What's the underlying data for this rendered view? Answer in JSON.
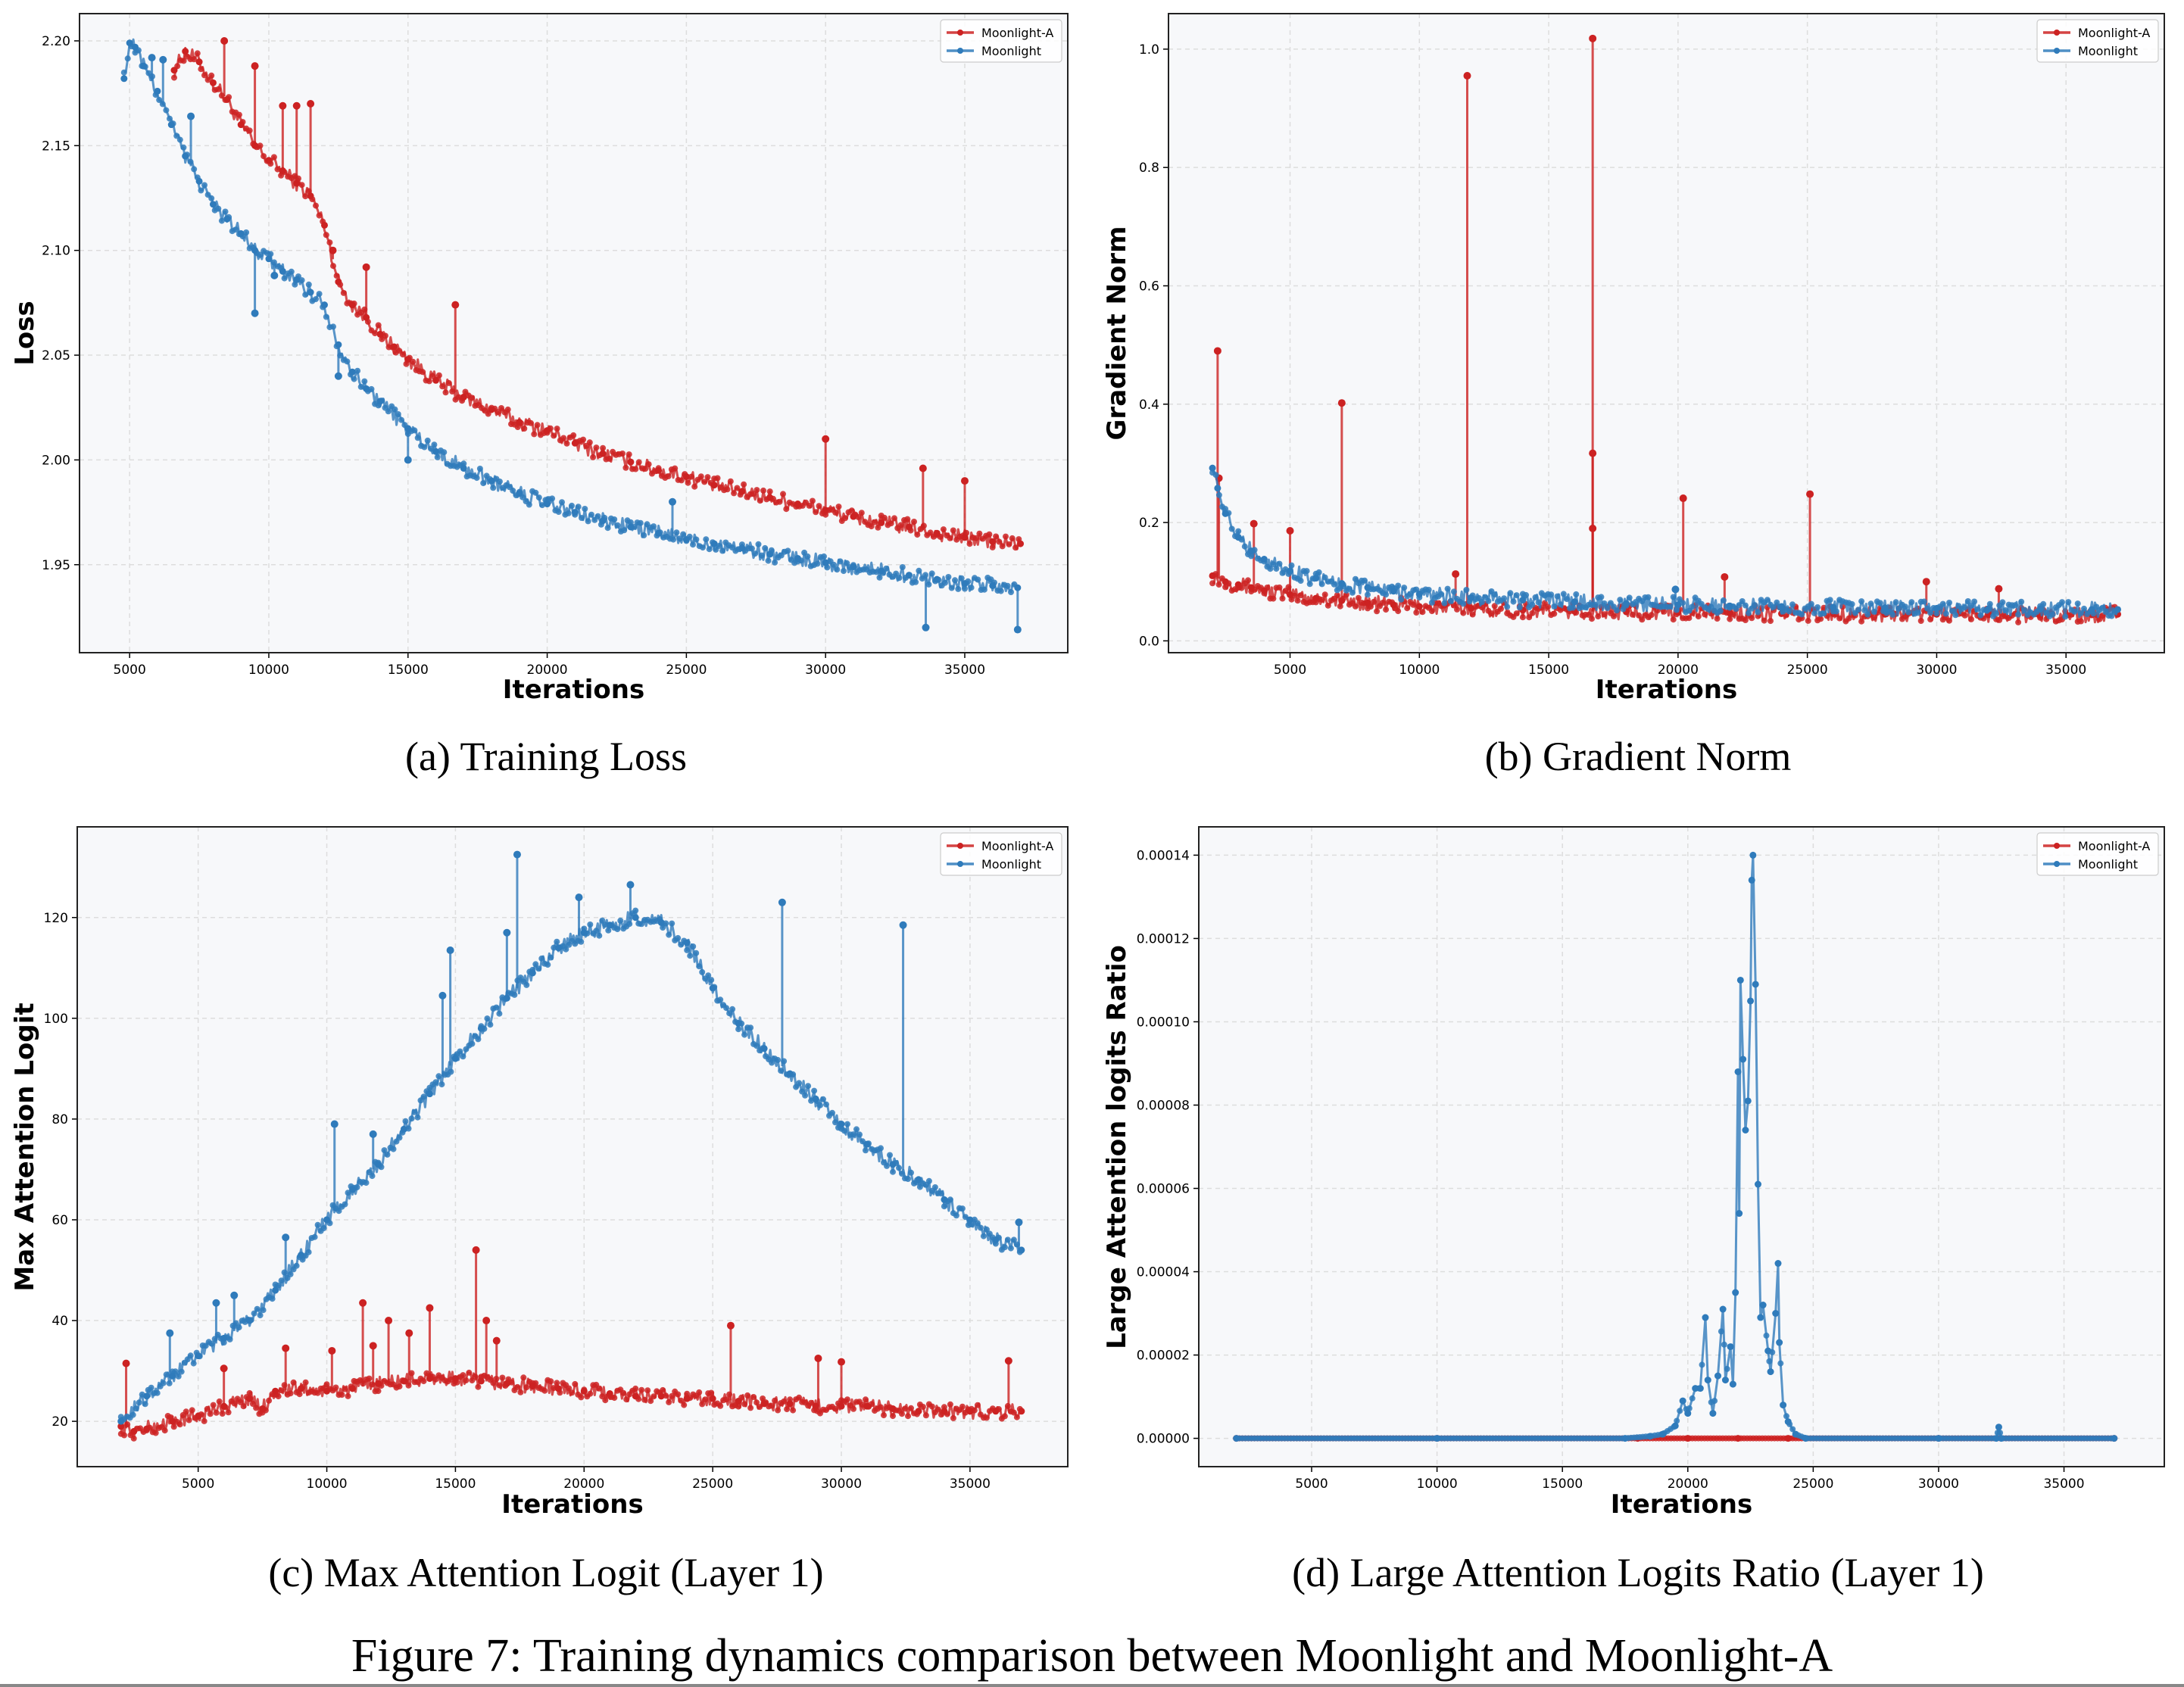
{
  "figure_caption": "Figure 7: Training dynamics comparison between Moonlight and Moonlight-A",
  "colors": {
    "moonlight_a": "#cc2222",
    "moonlight": "#2f7bbb",
    "plot_bg": "#f7f8fa",
    "grid": "#dddddd"
  },
  "chart_data": [
    {
      "id": "a",
      "type": "line",
      "caption": "(a) Training Loss",
      "title": "",
      "xlabel": "Iterations",
      "ylabel": "Loss",
      "xlim": [
        3200,
        38700
      ],
      "ylim": [
        1.908,
        2.213
      ],
      "xticks": [
        5000,
        10000,
        15000,
        20000,
        25000,
        30000,
        35000
      ],
      "yticks": [
        1.95,
        2.0,
        2.05,
        2.1,
        2.15,
        2.2
      ],
      "ytick_labels": [
        "1.95",
        "2.00",
        "2.05",
        "2.10",
        "2.15",
        "2.20"
      ],
      "grid": true,
      "legend": {
        "position": "top-right",
        "entries": [
          "Moonlight-A",
          "Moonlight"
        ]
      },
      "series": [
        {
          "name": "Moonlight-A",
          "color_key": "moonlight_a",
          "x": [
            6600,
            7000,
            7500,
            8000,
            8500,
            9000,
            9500,
            10000,
            10500,
            11000,
            11500,
            12000,
            12500,
            13000,
            13500,
            14000,
            14500,
            15000,
            16000,
            17000,
            18000,
            19000,
            20000,
            21000,
            22000,
            23000,
            24000,
            25000,
            26000,
            27000,
            28000,
            29000,
            30000,
            31000,
            32000,
            33000,
            34000,
            35000,
            36000,
            37000
          ],
          "values": [
            2.186,
            2.195,
            2.19,
            2.18,
            2.172,
            2.16,
            2.15,
            2.143,
            2.138,
            2.132,
            2.126,
            2.112,
            2.085,
            2.074,
            2.068,
            2.06,
            2.054,
            2.048,
            2.038,
            2.03,
            2.024,
            2.018,
            2.014,
            2.008,
            2.003,
            1.999,
            1.995,
            1.992,
            1.988,
            1.985,
            1.982,
            1.979,
            1.976,
            1.973,
            1.97,
            1.968,
            1.965,
            1.963,
            1.961,
            1.96
          ],
          "spikes": [
            [
              8400,
              2.2
            ],
            [
              9500,
              2.188
            ],
            [
              10500,
              2.169
            ],
            [
              11000,
              2.169
            ],
            [
              11500,
              2.17
            ],
            [
              12300,
              2.1
            ],
            [
              13500,
              2.092
            ],
            [
              16700,
              2.074
            ],
            [
              30000,
              2.01
            ],
            [
              33500,
              1.996
            ],
            [
              35000,
              1.99
            ]
          ]
        },
        {
          "name": "Moonlight",
          "color_key": "moonlight",
          "x": [
            4800,
            5000,
            5200,
            5500,
            6000,
            6500,
            7000,
            7500,
            8000,
            8500,
            9000,
            9500,
            10000,
            10500,
            11000,
            11500,
            12000,
            12500,
            13000,
            13500,
            14000,
            15000,
            16000,
            17000,
            18000,
            19000,
            20000,
            21000,
            22000,
            23000,
            24000,
            25000,
            26000,
            27000,
            28000,
            29000,
            30000,
            31000,
            32000,
            33000,
            34000,
            35000,
            36000,
            36900
          ],
          "values": [
            2.182,
            2.199,
            2.197,
            2.188,
            2.176,
            2.16,
            2.145,
            2.133,
            2.122,
            2.115,
            2.108,
            2.1,
            2.096,
            2.09,
            2.086,
            2.08,
            2.074,
            2.055,
            2.042,
            2.034,
            2.028,
            2.015,
            2.004,
            1.996,
            1.99,
            1.984,
            1.979,
            1.975,
            1.971,
            1.968,
            1.965,
            1.962,
            1.96,
            1.958,
            1.955,
            1.953,
            1.951,
            1.949,
            1.947,
            1.945,
            1.943,
            1.941,
            1.94,
            1.939
          ],
          "spikes": [
            [
              5800,
              2.192
            ],
            [
              6200,
              2.191
            ],
            [
              7200,
              2.164
            ],
            [
              9500,
              2.07
            ],
            [
              10200,
              2.088
            ],
            [
              12500,
              2.04
            ],
            [
              15000,
              2.0
            ],
            [
              24500,
              1.98
            ],
            [
              33600,
              1.92
            ],
            [
              36900,
              1.919
            ]
          ]
        }
      ]
    },
    {
      "id": "b",
      "type": "line",
      "caption": "(b) Gradient Norm",
      "title": "",
      "xlabel": "Iterations",
      "ylabel": "Gradient Norm",
      "xlim": [
        300,
        38800
      ],
      "ylim": [
        -0.02,
        1.06
      ],
      "xticks": [
        5000,
        10000,
        15000,
        20000,
        25000,
        30000,
        35000
      ],
      "yticks": [
        0.0,
        0.2,
        0.4,
        0.6,
        0.8,
        1.0
      ],
      "ytick_labels": [
        "0.0",
        "0.2",
        "0.4",
        "0.6",
        "0.8",
        "1.0"
      ],
      "grid": true,
      "legend": {
        "position": "top-right",
        "entries": [
          "Moonlight-A",
          "Moonlight"
        ]
      },
      "series": [
        {
          "name": "Moonlight-A",
          "color_key": "moonlight_a",
          "x": [
            2000,
            2500,
            3000,
            3500,
            4000,
            5000,
            6000,
            7000,
            8000,
            9000,
            10000,
            12000,
            14000,
            16000,
            18000,
            20000,
            22000,
            24000,
            26000,
            28000,
            30000,
            32000,
            34000,
            36000,
            37000
          ],
          "values": [
            0.11,
            0.1,
            0.095,
            0.09,
            0.085,
            0.078,
            0.072,
            0.068,
            0.064,
            0.061,
            0.058,
            0.055,
            0.052,
            0.05,
            0.049,
            0.048,
            0.047,
            0.046,
            0.046,
            0.045,
            0.045,
            0.044,
            0.044,
            0.044,
            0.045
          ],
          "spikes": [
            [
              2200,
              0.49
            ],
            [
              2250,
              0.275
            ],
            [
              3600,
              0.198
            ],
            [
              5000,
              0.186
            ],
            [
              7000,
              0.402
            ],
            [
              11400,
              0.113
            ],
            [
              11850,
              0.955
            ],
            [
              16700,
              1.018
            ],
            [
              16700,
              0.317
            ],
            [
              16700,
              0.19
            ],
            [
              20200,
              0.241
            ],
            [
              21800,
              0.108
            ],
            [
              25100,
              0.248
            ],
            [
              29600,
              0.1
            ],
            [
              32400,
              0.088
            ]
          ]
        },
        {
          "name": "Moonlight",
          "color_key": "moonlight",
          "x": [
            2000,
            2200,
            2500,
            3000,
            3500,
            4000,
            5000,
            6000,
            7000,
            8000,
            9000,
            10000,
            12000,
            14000,
            16000,
            18000,
            20000,
            22000,
            24000,
            26000,
            28000,
            30000,
            32000,
            34000,
            36000,
            37000
          ],
          "values": [
            0.292,
            0.258,
            0.215,
            0.175,
            0.152,
            0.138,
            0.118,
            0.106,
            0.097,
            0.09,
            0.084,
            0.079,
            0.073,
            0.069,
            0.066,
            0.063,
            0.061,
            0.059,
            0.058,
            0.057,
            0.056,
            0.055,
            0.054,
            0.054,
            0.053,
            0.053
          ],
          "spikes": [
            [
              19900,
              0.087
            ]
          ]
        }
      ]
    },
    {
      "id": "c",
      "type": "line",
      "caption": "(c) Max Attention Logit (Layer 1)",
      "title": "",
      "xlabel": "Iterations",
      "ylabel": "Max Attention Logit",
      "xlim": [
        300,
        38800
      ],
      "ylim": [
        11,
        138
      ],
      "xticks": [
        5000,
        10000,
        15000,
        20000,
        25000,
        30000,
        35000
      ],
      "yticks": [
        20,
        40,
        60,
        80,
        100,
        120
      ],
      "ytick_labels": [
        "20",
        "40",
        "60",
        "80",
        "100",
        "120"
      ],
      "grid": true,
      "legend": {
        "position": "top-right",
        "entries": [
          "Moonlight-A",
          "Moonlight"
        ]
      },
      "series": [
        {
          "name": "Moonlight-A",
          "color_key": "moonlight_a",
          "x": [
            2000,
            2500,
            3000,
            4000,
            5000,
            6000,
            7000,
            7500,
            8000,
            9000,
            10000,
            11000,
            12000,
            13000,
            14000,
            15000,
            16000,
            17000,
            18000,
            19000,
            20000,
            21000,
            22000,
            23000,
            24000,
            25000,
            26000,
            27000,
            28000,
            29000,
            30000,
            31000,
            32000,
            33000,
            34000,
            35000,
            36000,
            37000
          ],
          "values": [
            19.0,
            18.0,
            18.5,
            20.0,
            21.0,
            23.0,
            24.5,
            22.5,
            26.0,
            26.5,
            26.0,
            26.5,
            27.5,
            28.0,
            28.5,
            28.5,
            28.0,
            27.5,
            27.0,
            26.5,
            26.0,
            25.5,
            25.0,
            25.0,
            24.5,
            24.5,
            24.0,
            23.5,
            23.5,
            23.0,
            23.0,
            23.0,
            22.5,
            22.0,
            22.0,
            22.0,
            22.0,
            22.0
          ],
          "spikes": [
            [
              2200,
              31.5
            ],
            [
              6000,
              30.5
            ],
            [
              8400,
              34.5
            ],
            [
              10200,
              34.0
            ],
            [
              11400,
              43.5
            ],
            [
              11800,
              35.0
            ],
            [
              12400,
              40.0
            ],
            [
              13200,
              37.5
            ],
            [
              14000,
              42.5
            ],
            [
              15800,
              54.0
            ],
            [
              16200,
              40.0
            ],
            [
              16600,
              36.0
            ],
            [
              25700,
              39.0
            ],
            [
              29100,
              32.5
            ],
            [
              30000,
              31.8
            ],
            [
              36500,
              32.0
            ]
          ]
        },
        {
          "name": "Moonlight",
          "color_key": "moonlight",
          "x": [
            2000,
            3000,
            4000,
            5000,
            6000,
            7000,
            8000,
            9000,
            10000,
            11000,
            12000,
            13000,
            14000,
            15000,
            16000,
            17000,
            18000,
            19000,
            20000,
            21000,
            22000,
            23000,
            24000,
            25000,
            26000,
            27000,
            28000,
            29000,
            30000,
            31000,
            32000,
            33000,
            34000,
            35000,
            36000,
            37000
          ],
          "values": [
            20.0,
            25.0,
            29.0,
            33.0,
            36.5,
            40.0,
            46.0,
            53.0,
            60.0,
            66.0,
            71.0,
            78.0,
            85.0,
            92.0,
            98.0,
            104.0,
            109.0,
            114.0,
            117.0,
            118.5,
            120.0,
            119.0,
            115.0,
            106.0,
            99.0,
            94.0,
            89.0,
            84.0,
            79.0,
            75.0,
            71.0,
            68.0,
            64.0,
            60.0,
            56.0,
            54.0
          ],
          "spikes": [
            [
              3900,
              37.5
            ],
            [
              5700,
              43.5
            ],
            [
              6400,
              45.0
            ],
            [
              8400,
              56.5
            ],
            [
              10300,
              79.0
            ],
            [
              11800,
              77.0
            ],
            [
              14500,
              104.5
            ],
            [
              14800,
              113.5
            ],
            [
              17000,
              117.0
            ],
            [
              17400,
              132.5
            ],
            [
              19800,
              124.0
            ],
            [
              21800,
              126.5
            ],
            [
              27700,
              123.0
            ],
            [
              32400,
              118.5
            ],
            [
              36900,
              59.5
            ]
          ]
        }
      ]
    },
    {
      "id": "d",
      "type": "line",
      "caption": "(d) Large Attention Logits Ratio (Layer 1)",
      "title": "",
      "xlabel": "Iterations",
      "ylabel": "Large Attention logits Ratio",
      "xlim": [
        500,
        39000
      ],
      "ylim": [
        -6.8e-06,
        0.0001468
      ],
      "xticks": [
        5000,
        10000,
        15000,
        20000,
        25000,
        30000,
        35000
      ],
      "yticks": [
        0.0,
        2e-05,
        4e-05,
        6e-05,
        8e-05,
        0.0001,
        0.00012,
        0.00014
      ],
      "ytick_labels": [
        "0.00000",
        "0.00002",
        "0.00004",
        "0.00006",
        "0.00008",
        "0.00010",
        "0.00012",
        "0.00014"
      ],
      "grid": true,
      "legend": {
        "position": "top-right",
        "entries": [
          "Moonlight-A",
          "Moonlight"
        ]
      },
      "series": [
        {
          "name": "Moonlight-A",
          "color_key": "moonlight_a",
          "x": [
            2000,
            10000,
            18000,
            20000,
            22000,
            24000,
            30000,
            37000
          ],
          "values": [
            0,
            0,
            0,
            0,
            0,
            0,
            0,
            0
          ],
          "spikes": []
        },
        {
          "name": "Moonlight",
          "color_key": "moonlight",
          "x": [
            2000,
            10000,
            17500,
            18500,
            19000,
            19500,
            19800,
            20000,
            20300,
            20500,
            20700,
            20800,
            21000,
            21200,
            21400,
            21500,
            21700,
            21800,
            21900,
            22000,
            22050,
            22100,
            22200,
            22300,
            22400,
            22500,
            22550,
            22600,
            22700,
            22800,
            22900,
            23000,
            23200,
            23300,
            23500,
            23600,
            23650,
            23800,
            24000,
            24300,
            24700,
            30000,
            32300,
            32400,
            32500,
            37000
          ],
          "values": [
            0,
            0,
            0,
            5e-07,
            1e-06,
            3e-06,
            9e-06,
            6e-06,
            1.2e-05,
            1.2e-05,
            2.9e-05,
            1.4e-05,
            6e-06,
            1.5e-05,
            3.1e-05,
            1.4e-05,
            2.2e-05,
            1.3e-05,
            3.5e-05,
            8.8e-05,
            5.4e-05,
            0.00011,
            9.1e-05,
            7.4e-05,
            8.1e-05,
            0.000105,
            0.000134,
            0.00014,
            0.000109,
            6.1e-05,
            2.9e-05,
            3.2e-05,
            2.1e-05,
            1.6e-05,
            3e-05,
            4.2e-05,
            2.3e-05,
            8e-06,
            4e-06,
            1e-06,
            0,
            0,
            0,
            2.7e-06,
            0,
            0
          ],
          "spikes": []
        }
      ]
    }
  ]
}
